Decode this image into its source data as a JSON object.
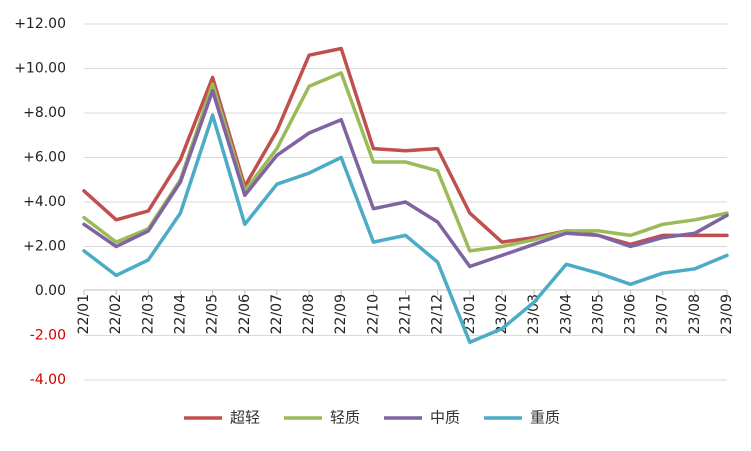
{
  "chart_data": {
    "type": "line",
    "title": "",
    "xlabel": "",
    "ylabel": "",
    "ylim": [
      -4,
      12
    ],
    "y_ticks": [
      12,
      10,
      8,
      6,
      4,
      2,
      0,
      -2,
      -4
    ],
    "y_tick_labels": [
      "+12.00",
      "+10.00",
      "+8.00",
      "+6.00",
      "+4.00",
      "+2.00",
      "0.00",
      "-2.00",
      "-4.00"
    ],
    "negative_tick_color": "#cc0000",
    "grid": true,
    "legend_position": "bottom",
    "categories": [
      "22/01",
      "22/02",
      "22/03",
      "22/04",
      "22/05",
      "22/06",
      "22/07",
      "22/08",
      "22/09",
      "22/10",
      "22/11",
      "22/12",
      "23/01",
      "23/02",
      "23/03",
      "23/04",
      "23/05",
      "23/06",
      "23/07",
      "23/08",
      "23/09"
    ],
    "series": [
      {
        "name": "超轻",
        "color": "#c0504d",
        "values": [
          4.5,
          3.2,
          3.6,
          5.9,
          9.6,
          4.7,
          7.2,
          10.6,
          10.9,
          6.4,
          6.3,
          6.4,
          3.5,
          2.2,
          2.4,
          2.7,
          2.5,
          2.1,
          2.5,
          2.5,
          2.5
        ]
      },
      {
        "name": "轻质",
        "color": "#9bbb59",
        "values": [
          3.3,
          2.2,
          2.8,
          5.0,
          9.3,
          4.5,
          6.4,
          9.2,
          9.8,
          5.8,
          5.8,
          5.4,
          1.8,
          2.0,
          2.3,
          2.7,
          2.7,
          2.5,
          3.0,
          3.2,
          3.5
        ]
      },
      {
        "name": "中质",
        "color": "#8064a2",
        "values": [
          3.0,
          2.0,
          2.7,
          4.9,
          9.0,
          4.3,
          6.1,
          7.1,
          7.7,
          3.7,
          4.0,
          3.1,
          1.1,
          1.6,
          2.1,
          2.6,
          2.5,
          2.0,
          2.4,
          2.6,
          3.4
        ]
      },
      {
        "name": "重质",
        "color": "#4bacc6",
        "values": [
          1.8,
          0.7,
          1.4,
          3.5,
          7.9,
          3.0,
          4.8,
          5.3,
          6.0,
          2.2,
          2.5,
          1.3,
          -2.3,
          -1.7,
          -0.5,
          1.2,
          0.8,
          0.3,
          0.8,
          1.0,
          1.6
        ]
      }
    ]
  }
}
